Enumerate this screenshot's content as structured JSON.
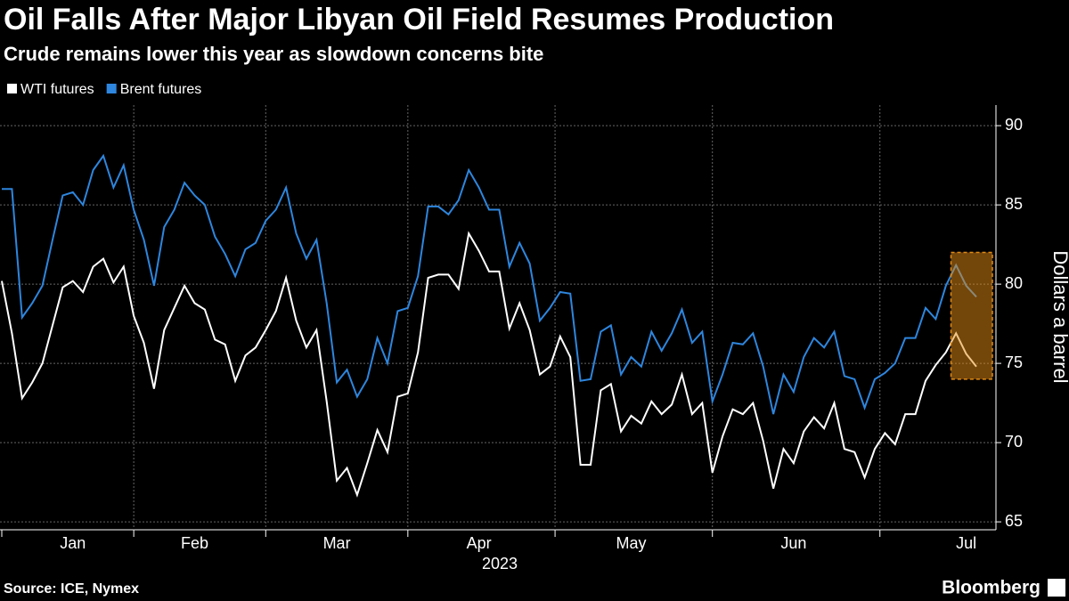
{
  "chart_data": {
    "type": "line",
    "title": "Oil Falls After Major Libyan Oil Field Resumes Production",
    "subtitle": "Crude remains lower this year as slowdown concerns bite",
    "source": "Source: ICE, Nymex",
    "brand": "Bloomberg",
    "x_label": "2023",
    "y_label": "Dollars a barrel",
    "categories": [
      null,
      null,
      null,
      null,
      null,
      null,
      null,
      "Jan",
      null,
      null,
      null,
      null,
      null,
      null,
      null,
      null,
      null,
      null,
      null,
      "Feb",
      null,
      null,
      null,
      null,
      null,
      null,
      null,
      null,
      null,
      null,
      null,
      null,
      null,
      "Mar",
      null,
      null,
      null,
      null,
      null,
      null,
      null,
      null,
      null,
      null,
      null,
      null,
      null,
      "Apr",
      null,
      null,
      null,
      null,
      null,
      null,
      null,
      null,
      null,
      null,
      null,
      null,
      null,
      null,
      "May",
      null,
      null,
      null,
      null,
      null,
      null,
      null,
      null,
      null,
      null,
      null,
      null,
      null,
      null,
      null,
      "Jun",
      null,
      null,
      null,
      null,
      null,
      null,
      null,
      null,
      null,
      null,
      null,
      null,
      null,
      null,
      null,
      null,
      "Jul",
      null
    ],
    "series": [
      {
        "name": "WTI futures",
        "color": "#ffffff",
        "values": [
          80.2,
          76.9,
          72.8,
          73.8,
          75.0,
          77.4,
          79.8,
          80.2,
          79.5,
          81.1,
          81.6,
          80.1,
          81.1,
          78.0,
          76.3,
          73.4,
          77.1,
          78.5,
          79.9,
          78.8,
          78.4,
          76.5,
          76.2,
          73.9,
          75.5,
          76.0,
          77.1,
          78.3,
          80.4,
          77.7,
          76.0,
          77.1,
          72.6,
          67.6,
          68.4,
          66.7,
          68.7,
          70.8,
          69.4,
          72.9,
          73.1,
          75.7,
          80.4,
          80.6,
          80.6,
          79.7,
          83.2,
          82.1,
          80.8,
          80.8,
          77.2,
          78.8,
          77.1,
          74.3,
          74.8,
          76.7,
          75.4,
          68.6,
          68.6,
          73.3,
          73.7,
          70.7,
          71.7,
          71.2,
          72.6,
          71.8,
          72.4,
          74.3,
          71.8,
          72.5,
          68.1,
          70.4,
          72.1,
          71.8,
          72.5,
          70.1,
          67.1,
          69.6,
          68.7,
          70.7,
          71.6,
          70.9,
          72.5,
          69.6,
          69.4,
          67.8,
          69.6,
          70.6,
          69.9,
          71.8,
          71.8,
          73.9,
          74.9,
          75.7,
          76.9,
          75.6,
          74.8
        ]
      },
      {
        "name": "Brent futures",
        "color": "#2e86de",
        "values": [
          86.0,
          86.0,
          77.9,
          78.8,
          79.9,
          82.8,
          85.6,
          85.8,
          85.0,
          87.2,
          88.1,
          86.1,
          87.5,
          84.7,
          82.8,
          79.9,
          83.6,
          84.7,
          86.4,
          85.6,
          85.0,
          83.0,
          81.9,
          80.5,
          82.2,
          82.6,
          84.0,
          84.7,
          86.1,
          83.2,
          81.6,
          82.8,
          78.8,
          73.8,
          74.6,
          72.9,
          74.0,
          76.6,
          75.0,
          78.3,
          78.5,
          80.5,
          84.9,
          84.9,
          84.4,
          85.3,
          87.2,
          86.1,
          84.7,
          84.7,
          81.1,
          82.6,
          81.3,
          77.7,
          78.5,
          79.5,
          79.4,
          73.9,
          74.0,
          77.0,
          77.4,
          74.3,
          75.4,
          74.8,
          77.0,
          75.8,
          76.9,
          78.4,
          76.3,
          77.0,
          72.6,
          74.3,
          76.3,
          76.2,
          76.9,
          74.8,
          71.8,
          74.3,
          73.2,
          75.4,
          76.6,
          76.0,
          77.0,
          74.2,
          74.0,
          72.2,
          74.0,
          74.4,
          75.0,
          76.6,
          76.6,
          78.5,
          77.8,
          79.9,
          81.2,
          79.9,
          79.2
        ]
      }
    ],
    "highlight_ylim": [
      74,
      82
    ],
    "ylim": [
      64.5,
      91.3
    ],
    "yticks": [
      65,
      70,
      75,
      80,
      85,
      90
    ],
    "grid": true
  }
}
